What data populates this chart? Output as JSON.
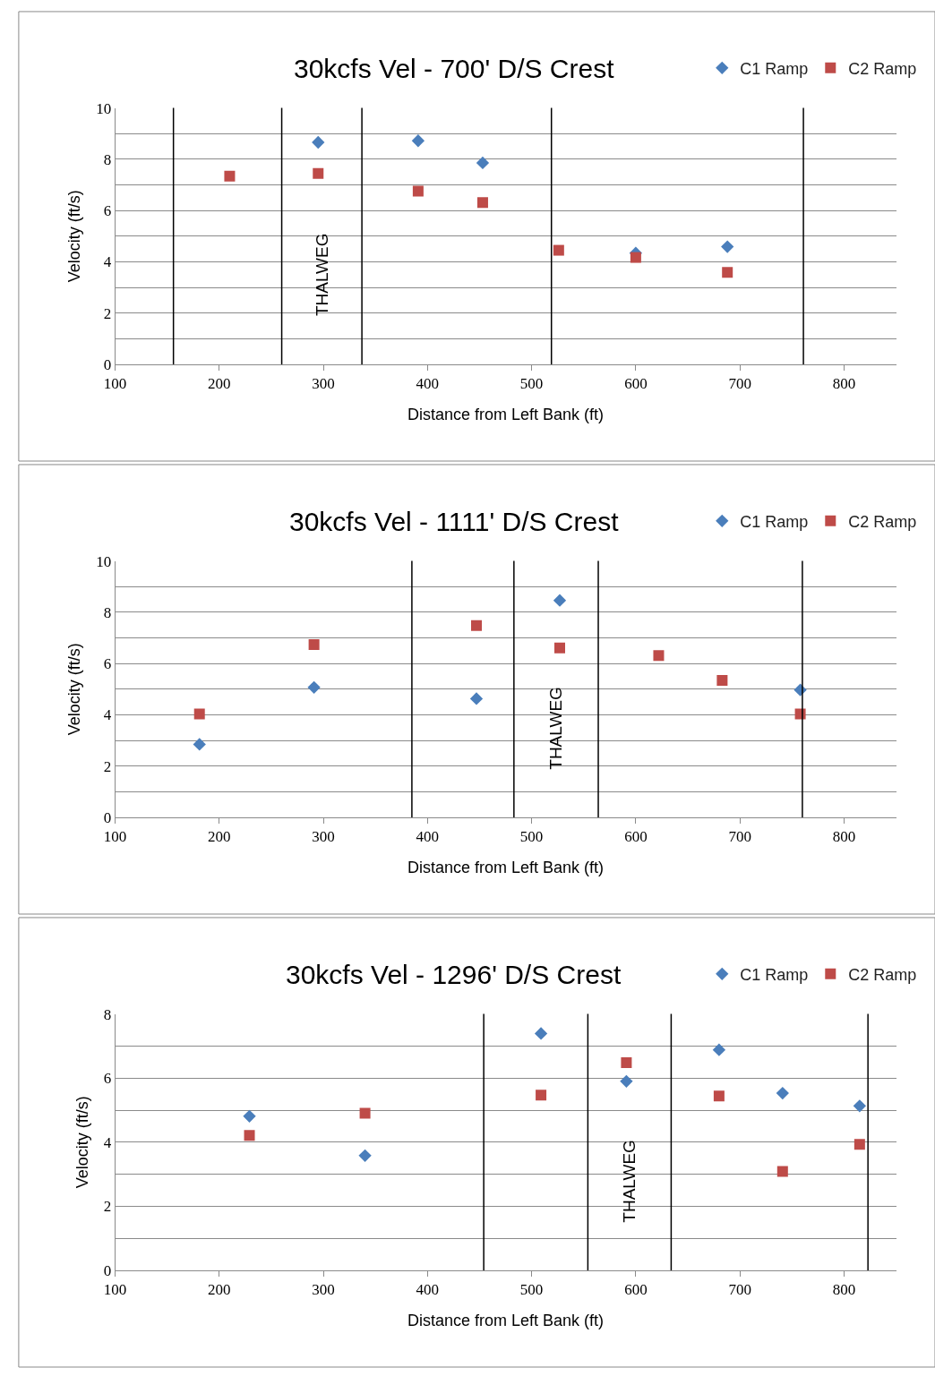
{
  "chart_data": [
    {
      "type": "scatter",
      "title": "30kcfs Vel - 700' D/S Crest",
      "xlabel": "Distance from Left Bank (ft)",
      "ylabel": "Velocity (ft/s)",
      "xlim": [
        100,
        850
      ],
      "xticks": [
        100,
        200,
        300,
        400,
        500,
        600,
        700,
        800
      ],
      "ylim": [
        0,
        10
      ],
      "yticks": [
        0,
        {
          "value": 1,
          "label": null
        },
        2,
        {
          "value": 3,
          "label": null
        },
        4,
        {
          "value": 5,
          "label": null
        },
        6,
        {
          "value": 7,
          "label": null
        },
        8,
        {
          "value": 9,
          "label": null
        },
        10
      ],
      "grid": "y",
      "legend": "top right",
      "series": [
        {
          "name": "C1 Ramp",
          "color": "#4a7ebb",
          "marker": "diamond",
          "x": [
            295,
            391,
            453,
            600,
            688
          ],
          "values": [
            8.66,
            8.72,
            7.86,
            4.34,
            4.59
          ]
        },
        {
          "name": "C2 Ramp",
          "color": "#be4b48",
          "marker": "square",
          "x": [
            210,
            295,
            391,
            453,
            526,
            600,
            688
          ],
          "values": [
            7.34,
            7.45,
            6.76,
            6.31,
            4.45,
            4.17,
            3.59
          ]
        }
      ],
      "ref_lines": [
        {
          "axis": "x",
          "value": 156,
          "color": "#000000"
        },
        {
          "axis": "x",
          "value": 260,
          "color": "#000000"
        },
        {
          "axis": "x",
          "value": 337,
          "color": "#000000"
        },
        {
          "axis": "x",
          "value": 519,
          "color": "#000000"
        },
        {
          "axis": "x",
          "value": 761,
          "color": "#000000"
        }
      ],
      "annotations": [
        "THALWEG"
      ]
    },
    {
      "type": "scatter",
      "title": "30kcfs Vel - 1111' D/S Crest",
      "xlabel": "Distance from Left Bank (ft)",
      "ylabel": "Velocity (ft/s)",
      "xlim": [
        100,
        850
      ],
      "xticks": [
        100,
        200,
        300,
        400,
        500,
        600,
        700,
        800
      ],
      "ylim": [
        0,
        10
      ],
      "yticks": [
        0,
        {
          "value": 1,
          "label": null
        },
        2,
        {
          "value": 3,
          "label": null
        },
        4,
        {
          "value": 5,
          "label": null
        },
        6,
        {
          "value": 7,
          "label": null
        },
        8,
        {
          "value": 9,
          "label": null
        },
        10
      ],
      "grid": "y",
      "legend": "top right",
      "series": [
        {
          "name": "C1 Ramp",
          "color": "#4a7ebb",
          "marker": "diamond",
          "x": [
            181,
            291,
            447,
            527,
            758
          ],
          "values": [
            2.85,
            5.07,
            4.63,
            8.46,
            4.97
          ]
        },
        {
          "name": "C2 Ramp",
          "color": "#be4b48",
          "marker": "square",
          "x": [
            181,
            291,
            447,
            527,
            622,
            683,
            758
          ],
          "values": [
            4.03,
            6.74,
            7.48,
            6.61,
            6.31,
            5.34,
            4.03
          ]
        }
      ],
      "ref_lines": [
        {
          "axis": "x",
          "value": 385,
          "color": "#000000"
        },
        {
          "axis": "x",
          "value": 483,
          "color": "#000000"
        },
        {
          "axis": "x",
          "value": 564,
          "color": "#000000"
        },
        {
          "axis": "x",
          "value": 760,
          "color": "#000000"
        }
      ],
      "annotations": [
        "THALWEG"
      ]
    },
    {
      "type": "scatter",
      "title": "30kcfs Vel - 1296' D/S Crest",
      "xlabel": "Distance from Left Bank (ft)",
      "ylabel": "Velocity (ft/s)",
      "xlim": [
        100,
        850
      ],
      "xticks": [
        100,
        200,
        300,
        400,
        500,
        600,
        700,
        800
      ],
      "ylim": [
        0,
        8
      ],
      "yticks": [
        0,
        {
          "value": 1,
          "label": null
        },
        2,
        {
          "value": 3,
          "label": null
        },
        4,
        {
          "value": 5,
          "label": null
        },
        6,
        {
          "value": 7,
          "label": null
        },
        8
      ],
      "grid": "y",
      "legend": "top right",
      "series": [
        {
          "name": "C1 Ramp",
          "color": "#4a7ebb",
          "marker": "diamond",
          "x": [
            229,
            340,
            509,
            591,
            680,
            741,
            815
          ],
          "values": [
            4.81,
            3.58,
            7.39,
            5.9,
            6.88,
            5.53,
            5.13
          ]
        },
        {
          "name": "C2 Ramp",
          "color": "#be4b48",
          "marker": "square",
          "x": [
            229,
            340,
            509,
            591,
            680,
            741,
            815
          ],
          "values": [
            4.21,
            4.9,
            5.47,
            6.48,
            5.44,
            3.09,
            3.93
          ]
        }
      ],
      "ref_lines": [
        {
          "axis": "x",
          "value": 454,
          "color": "#000000"
        },
        {
          "axis": "x",
          "value": 554,
          "color": "#000000"
        },
        {
          "axis": "x",
          "value": 634,
          "color": "#000000"
        },
        {
          "axis": "x",
          "value": 823,
          "color": "#000000"
        }
      ],
      "annotations": [
        "THALWEG"
      ]
    }
  ]
}
